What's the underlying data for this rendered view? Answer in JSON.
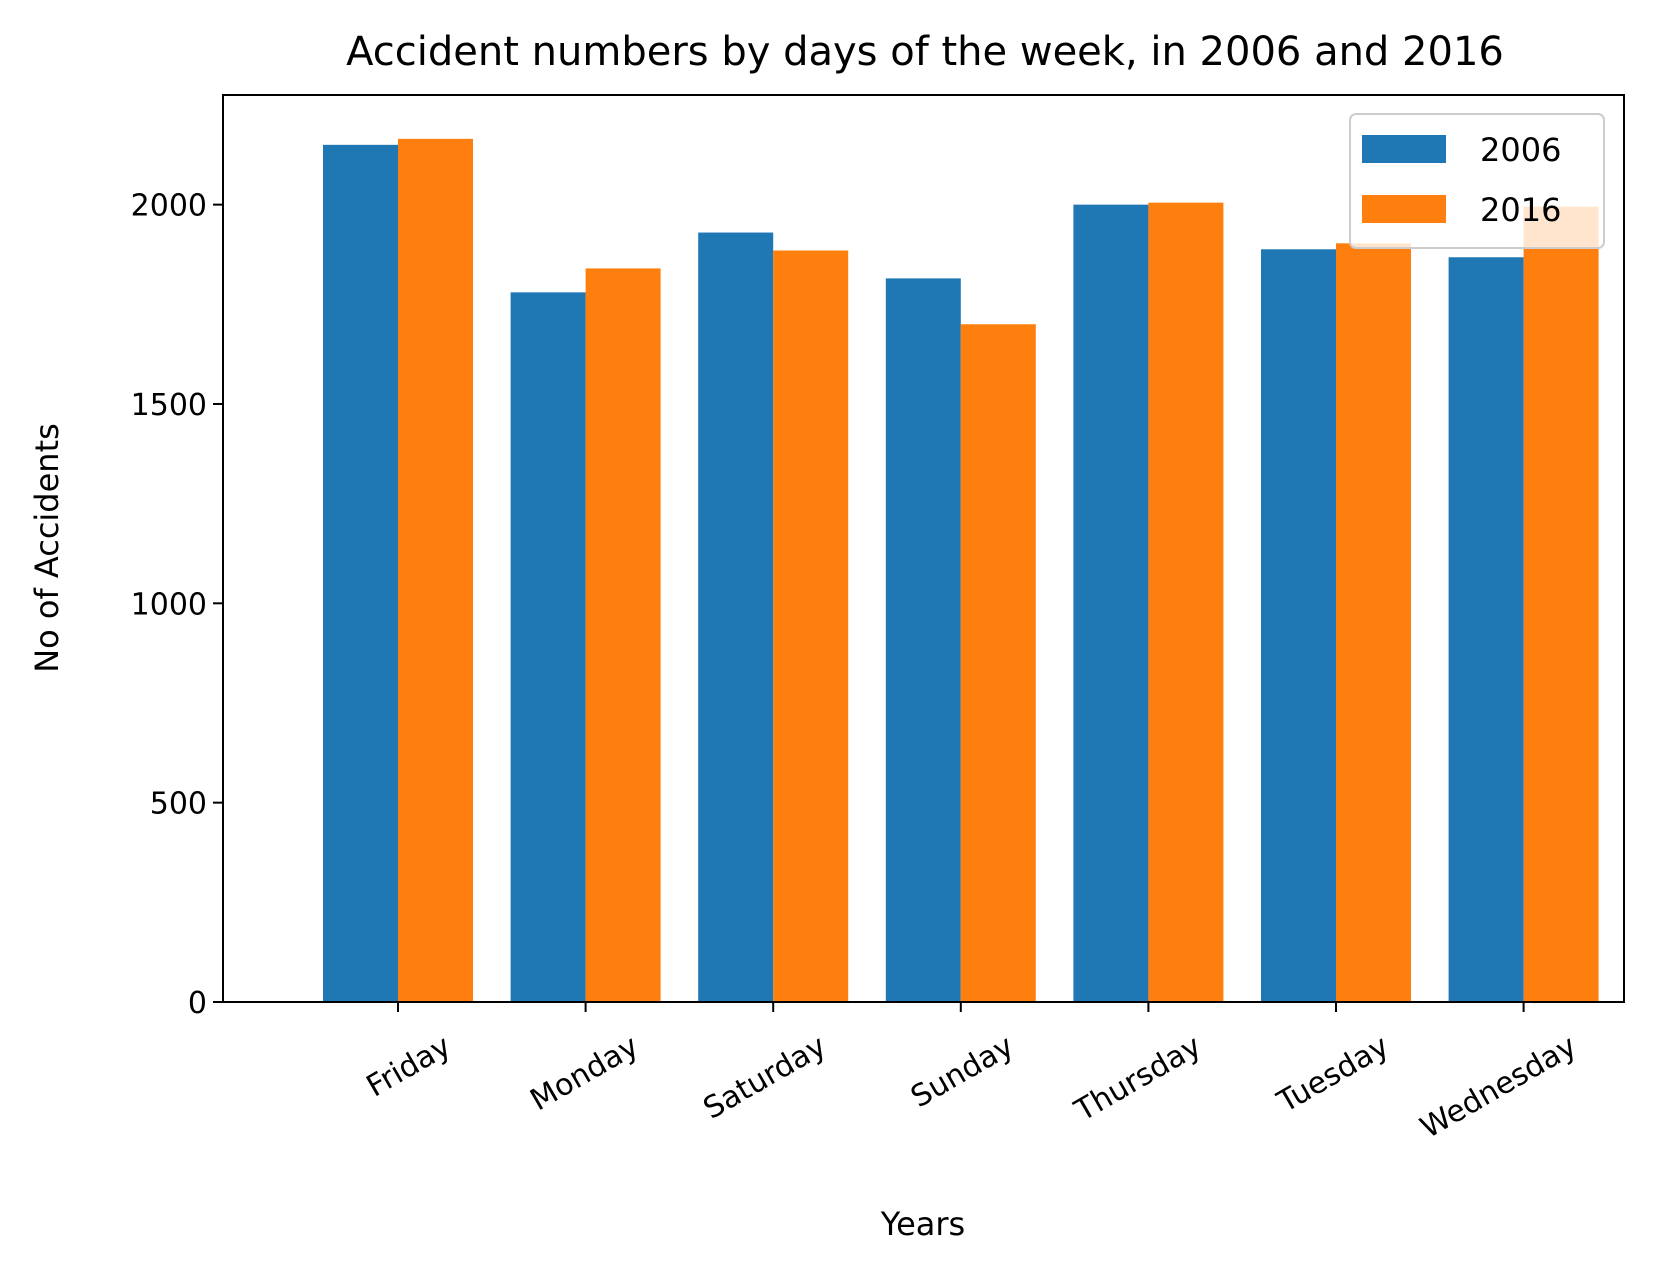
{
  "chart_data": {
    "type": "bar",
    "title": "Accident numbers by days of the week, in 2006 and 2016",
    "xlabel": "Years",
    "ylabel": "No of Accidents",
    "categories": [
      "Friday",
      "Monday",
      "Saturday",
      "Sunday",
      "Thursday",
      "Tuesday",
      "Wednesday"
    ],
    "series": [
      {
        "name": "2006",
        "color": "#1f77b4",
        "values": [
          2150,
          1780,
          1930,
          1815,
          2000,
          1888,
          1868
        ]
      },
      {
        "name": "2016",
        "color": "#ff7f0e",
        "values": [
          2165,
          1840,
          1885,
          1700,
          2005,
          1903,
          1995
        ]
      }
    ],
    "ylim": [
      0,
      2275
    ],
    "yticks": [
      0,
      500,
      1000,
      1500,
      2000
    ],
    "grid": false,
    "legend_position": "top-right"
  }
}
